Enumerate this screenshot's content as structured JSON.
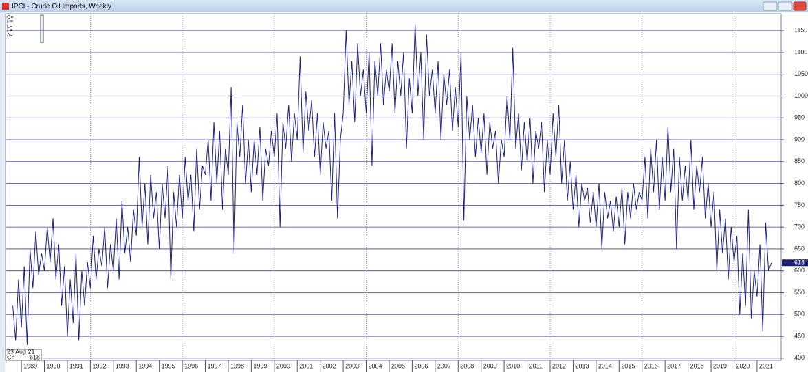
{
  "chart_data": {
    "type": "line",
    "title": "IPCI - Crude Oil Imports, Weekly",
    "info_labels": [
      "O=",
      "H=",
      "L=",
      "L=",
      "Δ="
    ],
    "cursor_date": "23 Aug 21",
    "close_label": "C=",
    "color": "#1c1f8a",
    "grid": true,
    "xgrid": [
      1992,
      1996,
      2000,
      2004,
      2008,
      2012,
      2016,
      2020
    ],
    "xlim": [
      1988.31,
      2022.05
    ],
    "ylim": [
      395,
      1188
    ],
    "xticks": [
      1989,
      1990,
      1991,
      1992,
      1993,
      1994,
      1995,
      1996,
      1997,
      1998,
      1999,
      2000,
      2001,
      2002,
      2003,
      2004,
      2005,
      2006,
      2007,
      2008,
      2009,
      2010,
      2011,
      2012,
      2013,
      2014,
      2015,
      2016,
      2017,
      2018,
      2019,
      2020,
      2021
    ],
    "yticks": [
      400,
      450,
      500,
      550,
      600,
      650,
      700,
      750,
      800,
      850,
      900,
      950,
      1000,
      1050,
      1100,
      1150
    ],
    "x": [
      1988.625,
      1988.75,
      1988.875,
      1989,
      1989.125,
      1989.25,
      1989.375,
      1989.5,
      1989.625,
      1989.75,
      1989.875,
      1990,
      1990.125,
      1990.25,
      1990.375,
      1990.5,
      1990.625,
      1990.75,
      1990.875,
      1991,
      1991.125,
      1991.25,
      1991.375,
      1991.5,
      1991.625,
      1991.75,
      1991.875,
      1992,
      1992.125,
      1992.25,
      1992.375,
      1992.5,
      1992.625,
      1992.75,
      1992.875,
      1993,
      1993.125,
      1993.25,
      1993.375,
      1993.5,
      1993.625,
      1993.75,
      1993.875,
      1994,
      1994.125,
      1994.25,
      1994.375,
      1994.5,
      1994.625,
      1994.75,
      1994.875,
      1995,
      1995.125,
      1995.25,
      1995.375,
      1995.5,
      1995.625,
      1995.75,
      1995.875,
      1996,
      1996.125,
      1996.25,
      1996.375,
      1996.5,
      1996.625,
      1996.75,
      1996.875,
      1997,
      1997.125,
      1997.25,
      1997.375,
      1997.5,
      1997.625,
      1997.75,
      1997.875,
      1998,
      1998.125,
      1998.25,
      1998.375,
      1998.5,
      1998.625,
      1998.75,
      1998.875,
      1999,
      1999.125,
      1999.25,
      1999.375,
      1999.5,
      1999.625,
      1999.75,
      1999.875,
      2000,
      2000.125,
      2000.25,
      2000.375,
      2000.5,
      2000.625,
      2000.75,
      2000.875,
      2001,
      2001.125,
      2001.25,
      2001.375,
      2001.5,
      2001.625,
      2001.75,
      2001.875,
      2002,
      2002.125,
      2002.25,
      2002.375,
      2002.5,
      2002.625,
      2002.75,
      2002.875,
      2003,
      2003.125,
      2003.25,
      2003.375,
      2003.5,
      2003.625,
      2003.75,
      2003.875,
      2004,
      2004.125,
      2004.25,
      2004.375,
      2004.5,
      2004.625,
      2004.75,
      2004.875,
      2005,
      2005.125,
      2005.25,
      2005.375,
      2005.5,
      2005.625,
      2005.75,
      2005.875,
      2006,
      2006.125,
      2006.25,
      2006.375,
      2006.5,
      2006.625,
      2006.75,
      2006.875,
      2007,
      2007.125,
      2007.25,
      2007.375,
      2007.5,
      2007.625,
      2007.75,
      2007.875,
      2008,
      2008.125,
      2008.25,
      2008.375,
      2008.5,
      2008.625,
      2008.75,
      2008.875,
      2009,
      2009.125,
      2009.25,
      2009.375,
      2009.5,
      2009.625,
      2009.75,
      2009.875,
      2010,
      2010.125,
      2010.25,
      2010.375,
      2010.5,
      2010.625,
      2010.75,
      2010.875,
      2011,
      2011.125,
      2011.25,
      2011.375,
      2011.5,
      2011.625,
      2011.75,
      2011.875,
      2012,
      2012.125,
      2012.25,
      2012.375,
      2012.5,
      2012.625,
      2012.75,
      2012.875,
      2013,
      2013.125,
      2013.25,
      2013.375,
      2013.5,
      2013.625,
      2013.75,
      2013.875,
      2014,
      2014.125,
      2014.25,
      2014.375,
      2014.5,
      2014.625,
      2014.75,
      2014.875,
      2015,
      2015.125,
      2015.25,
      2015.375,
      2015.5,
      2015.625,
      2015.75,
      2015.875,
      2016,
      2016.125,
      2016.25,
      2016.375,
      2016.5,
      2016.625,
      2016.75,
      2016.875,
      2017,
      2017.125,
      2017.25,
      2017.375,
      2017.5,
      2017.625,
      2017.75,
      2017.875,
      2018,
      2018.125,
      2018.25,
      2018.375,
      2018.5,
      2018.625,
      2018.75,
      2018.875,
      2019,
      2019.125,
      2019.25,
      2019.375,
      2019.5,
      2019.625,
      2019.75,
      2019.875,
      2020,
      2020.125,
      2020.25,
      2020.375,
      2020.5,
      2020.625,
      2020.75,
      2020.875,
      2021,
      2021.125,
      2021.25,
      2021.375,
      2021.5,
      2021.625
    ],
    "values": [
      520,
      440,
      580,
      470,
      610,
      430,
      650,
      560,
      690,
      590,
      640,
      600,
      700,
      620,
      720,
      580,
      660,
      520,
      610,
      450,
      580,
      480,
      640,
      440,
      600,
      520,
      620,
      560,
      680,
      580,
      650,
      610,
      700,
      560,
      660,
      600,
      720,
      580,
      760,
      640,
      700,
      620,
      740,
      680,
      860,
      700,
      800,
      660,
      820,
      720,
      780,
      650,
      800,
      720,
      840,
      580,
      780,
      700,
      820,
      720,
      860,
      760,
      820,
      690,
      880,
      740,
      840,
      820,
      900,
      760,
      940,
      800,
      920,
      740,
      880,
      820,
      1020,
      640,
      940,
      860,
      980,
      800,
      900,
      780,
      900,
      820,
      930,
      760,
      880,
      840,
      920,
      860,
      960,
      700,
      940,
      880,
      980,
      850,
      960,
      900,
      1090,
      870,
      1010,
      920,
      990,
      860,
      960,
      820,
      940,
      880,
      920,
      760,
      960,
      720,
      900,
      960,
      1150,
      980,
      1080,
      940,
      1120,
      1000,
      1060,
      960,
      1100,
      840,
      1080,
      1000,
      1120,
      980,
      1060,
      1010,
      1120,
      960,
      1080,
      1000,
      1100,
      880,
      1040,
      960,
      1165,
      1000,
      1100,
      900,
      1140,
      1000,
      1060,
      960,
      1080,
      900,
      1050,
      980,
      1060,
      920,
      1020,
      930,
      1100,
      715,
      1000,
      900,
      980,
      860,
      950,
      870,
      960,
      820,
      940,
      880,
      920,
      800,
      900,
      860,
      1000,
      900,
      1110,
      880,
      960,
      830,
      940,
      850,
      950,
      800,
      920,
      880,
      940,
      780,
      900,
      820,
      960,
      860,
      980,
      800,
      900,
      760,
      850,
      740,
      820,
      700,
      800,
      760,
      790,
      710,
      780,
      700,
      800,
      650,
      780,
      720,
      760,
      690,
      770,
      700,
      790,
      660,
      780,
      720,
      800,
      740,
      780,
      760,
      860,
      720,
      880,
      780,
      900,
      740,
      860,
      760,
      930,
      780,
      880,
      650,
      860,
      760,
      840,
      760,
      900,
      740,
      840,
      780,
      860,
      720,
      800,
      700,
      780,
      600,
      740,
      640,
      720,
      580,
      700,
      620,
      680,
      500,
      640,
      520,
      740,
      490,
      600,
      540,
      660,
      460,
      710,
      600,
      618
    ]
  }
}
